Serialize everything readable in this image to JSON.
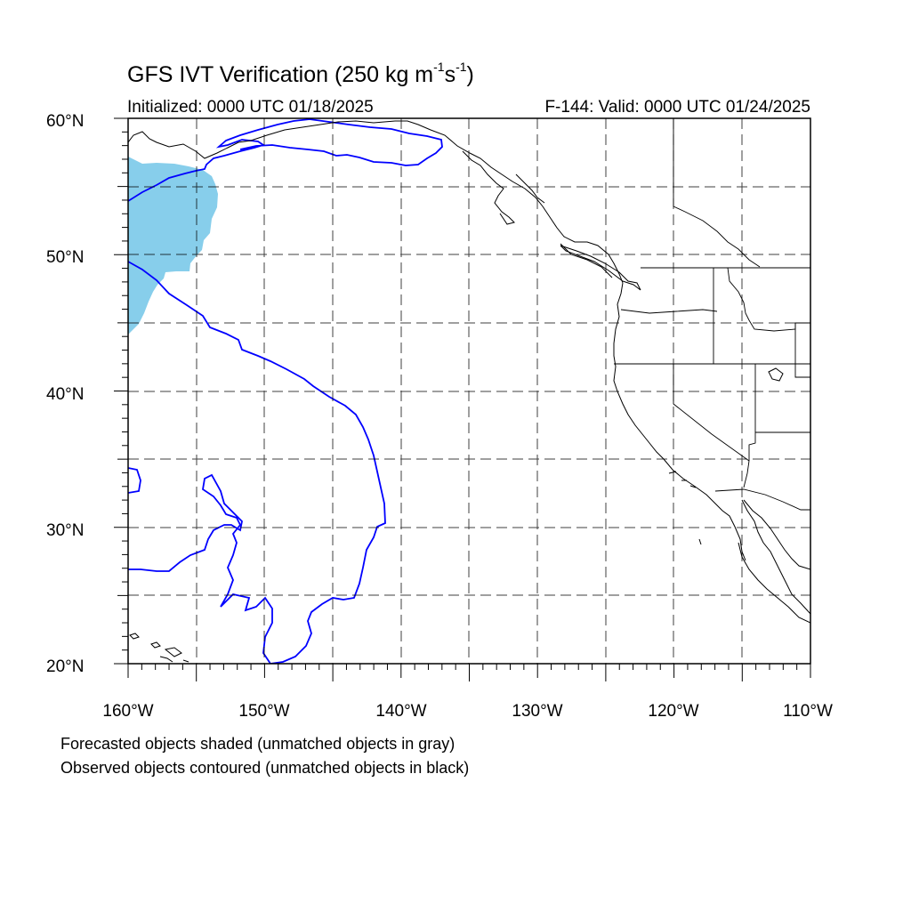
{
  "title": {
    "main": "GFS IVT Verification (250 kg m",
    "exp1": "-1",
    "mid": "s",
    "exp2": "-1",
    "end": ")"
  },
  "initialized": "Initialized: 0000 UTC 01/18/2025",
  "valid": "F-144: Valid: 0000 UTC 01/24/2025",
  "map": {
    "lon_range": [
      -160,
      -110
    ],
    "lat_range": [
      20,
      60
    ],
    "gridlines": "dashed",
    "lat_tick_labels": [
      "60°N",
      "50°N",
      "40°N",
      "30°N",
      "20°N"
    ],
    "lon_tick_labels": [
      "160°W",
      "150°W",
      "140°W",
      "130°W",
      "120°W",
      "110°W"
    ],
    "forecast_object_color": "#87ceeb",
    "observed_object_color": "#0000ff",
    "coastline_color": "#000000"
  },
  "captions": [
    "Forecasted objects shaded (unmatched objects in gray)",
    "Observed objects contoured (unmatched objects in black)"
  ]
}
